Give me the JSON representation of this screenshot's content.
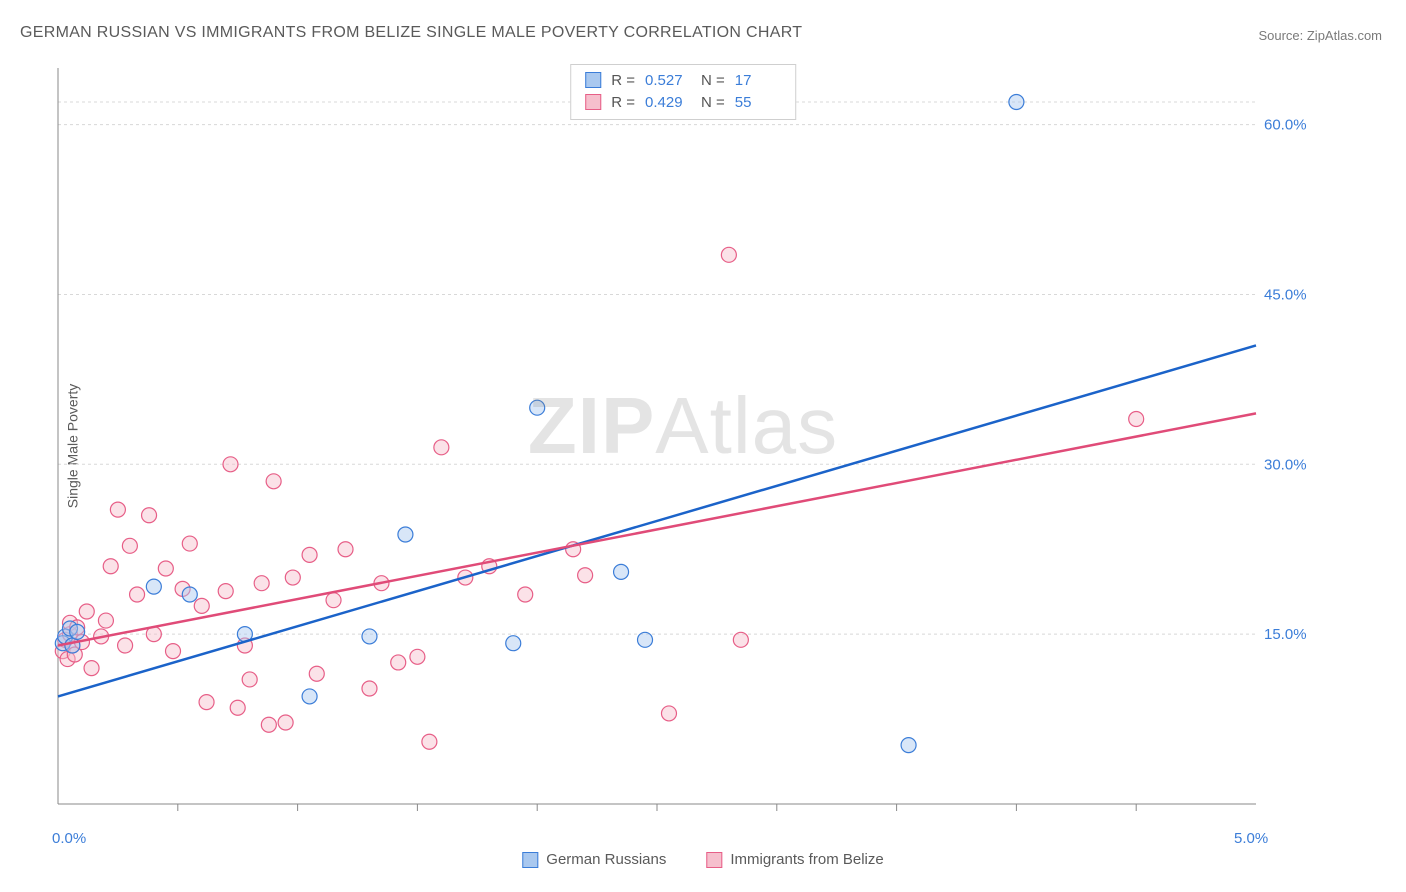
{
  "title": "GERMAN RUSSIAN VS IMMIGRANTS FROM BELIZE SINGLE MALE POVERTY CORRELATION CHART",
  "source": "Source: ZipAtlas.com",
  "ylabel": "Single Male Poverty",
  "watermark": {
    "zip": "ZIP",
    "atlas": "Atlas"
  },
  "chart": {
    "type": "scatter",
    "background_color": "#ffffff",
    "grid_color": "#d8d8d8",
    "axis_color": "#888888",
    "xlim": [
      0.0,
      5.0
    ],
    "ylim": [
      0.0,
      65.0
    ],
    "x_ticks_major_labels": [
      {
        "v": 0.0,
        "label": "0.0%"
      },
      {
        "v": 5.0,
        "label": "5.0%"
      }
    ],
    "x_ticks_minor": [
      0.5,
      1.0,
      1.5,
      2.0,
      2.5,
      3.0,
      3.5,
      4.0,
      4.5
    ],
    "y_ticks": [
      {
        "v": 15.0,
        "label": "15.0%"
      },
      {
        "v": 30.0,
        "label": "30.0%"
      },
      {
        "v": 45.0,
        "label": "45.0%"
      },
      {
        "v": 60.0,
        "label": "60.0%"
      }
    ],
    "y_grid_top": 62.0,
    "marker_radius": 7.5,
    "marker_opacity": 0.45,
    "trend_width": 2.5,
    "series": [
      {
        "key": "german_russians",
        "label": "German Russians",
        "color_fill": "#a9c8ef",
        "color_stroke": "#3b7dd8",
        "trend_color": "#1b63c9",
        "R": "0.527",
        "N": "17",
        "trend": {
          "x1": 0.0,
          "y1": 9.5,
          "x2": 5.0,
          "y2": 40.5
        },
        "points": [
          [
            0.02,
            14.2
          ],
          [
            0.03,
            14.8
          ],
          [
            0.05,
            15.5
          ],
          [
            0.06,
            14.0
          ],
          [
            0.08,
            15.2
          ],
          [
            0.4,
            19.2
          ],
          [
            0.55,
            18.5
          ],
          [
            0.78,
            15.0
          ],
          [
            1.05,
            9.5
          ],
          [
            1.3,
            14.8
          ],
          [
            1.45,
            23.8
          ],
          [
            1.9,
            14.2
          ],
          [
            2.0,
            35.0
          ],
          [
            2.35,
            20.5
          ],
          [
            2.45,
            14.5
          ],
          [
            3.55,
            5.2
          ],
          [
            4.0,
            62.0
          ]
        ]
      },
      {
        "key": "immigrants_belize",
        "label": "Immigrants from Belize",
        "color_fill": "#f6bfcd",
        "color_stroke": "#e75e87",
        "trend_color": "#e04b78",
        "R": "0.429",
        "N": "55",
        "trend": {
          "x1": 0.0,
          "y1": 14.0,
          "x2": 5.0,
          "y2": 34.5
        },
        "points": [
          [
            0.02,
            13.5
          ],
          [
            0.03,
            14.5
          ],
          [
            0.04,
            12.8
          ],
          [
            0.05,
            15.0
          ],
          [
            0.05,
            16.0
          ],
          [
            0.06,
            14.0
          ],
          [
            0.07,
            13.2
          ],
          [
            0.08,
            15.6
          ],
          [
            0.1,
            14.3
          ],
          [
            0.12,
            17.0
          ],
          [
            0.14,
            12.0
          ],
          [
            0.18,
            14.8
          ],
          [
            0.2,
            16.2
          ],
          [
            0.22,
            21.0
          ],
          [
            0.25,
            26.0
          ],
          [
            0.28,
            14.0
          ],
          [
            0.3,
            22.8
          ],
          [
            0.33,
            18.5
          ],
          [
            0.38,
            25.5
          ],
          [
            0.4,
            15.0
          ],
          [
            0.45,
            20.8
          ],
          [
            0.48,
            13.5
          ],
          [
            0.52,
            19.0
          ],
          [
            0.55,
            23.0
          ],
          [
            0.6,
            17.5
          ],
          [
            0.62,
            9.0
          ],
          [
            0.7,
            18.8
          ],
          [
            0.72,
            30.0
          ],
          [
            0.75,
            8.5
          ],
          [
            0.78,
            14.0
          ],
          [
            0.8,
            11.0
          ],
          [
            0.85,
            19.5
          ],
          [
            0.88,
            7.0
          ],
          [
            0.9,
            28.5
          ],
          [
            0.95,
            7.2
          ],
          [
            0.98,
            20.0
          ],
          [
            1.05,
            22.0
          ],
          [
            1.08,
            11.5
          ],
          [
            1.15,
            18.0
          ],
          [
            1.2,
            22.5
          ],
          [
            1.3,
            10.2
          ],
          [
            1.35,
            19.5
          ],
          [
            1.42,
            12.5
          ],
          [
            1.5,
            13.0
          ],
          [
            1.55,
            5.5
          ],
          [
            1.6,
            31.5
          ],
          [
            1.7,
            20.0
          ],
          [
            1.8,
            21.0
          ],
          [
            1.95,
            18.5
          ],
          [
            2.15,
            22.5
          ],
          [
            2.2,
            20.2
          ],
          [
            2.55,
            8.0
          ],
          [
            2.8,
            48.5
          ],
          [
            2.85,
            14.5
          ],
          [
            4.5,
            34.0
          ]
        ]
      }
    ],
    "correlation_legend_labels": {
      "R": "R =",
      "N": "N ="
    },
    "bottom_legend_swatch_size": 16
  }
}
